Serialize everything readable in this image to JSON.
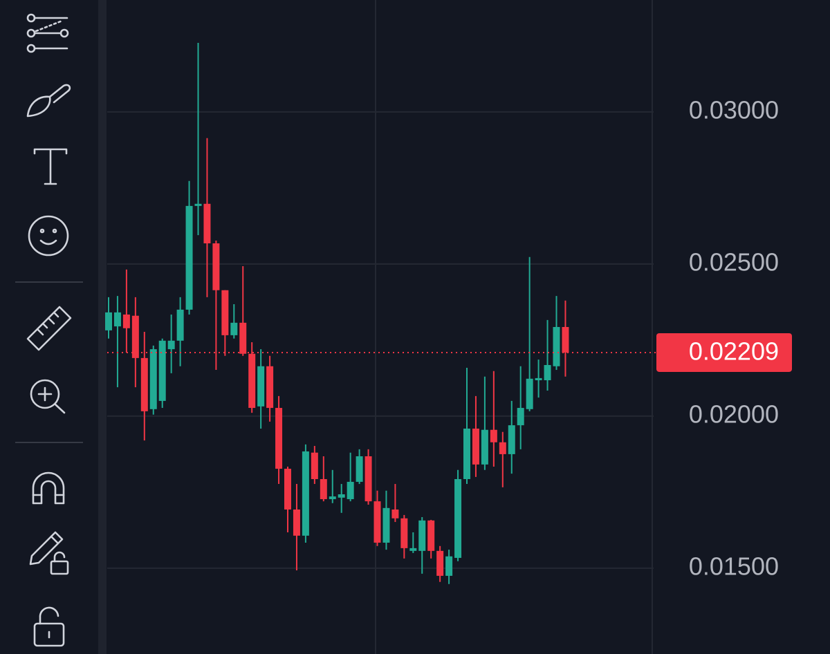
{
  "chart_data": {
    "type": "candlestick",
    "open": [
      0.02282,
      0.02295,
      0.02334,
      0.0233,
      0.02191,
      0.02023,
      0.0205,
      0.0222,
      0.02248,
      0.0235,
      0.02691,
      0.02698,
      0.02568,
      0.02414,
      0.02266,
      0.02307,
      0.02205,
      0.02032,
      0.02164,
      0.02027,
      0.01827,
      0.01693,
      0.01607,
      0.0188,
      0.01793,
      0.01727,
      0.01732,
      0.01727,
      0.01784,
      0.01868,
      0.0172,
      0.01584,
      0.01693,
      0.01664,
      0.01557,
      0.01557,
      0.01657,
      0.01557,
      0.01475,
      0.01534,
      0.01793,
      0.01959,
      0.01841,
      0.01955,
      0.01914,
      0.01875,
      0.0197,
      0.02023,
      0.02118,
      0.02118,
      0.02164,
      0.02293
    ],
    "high": [
      0.02391,
      0.02395,
      0.02482,
      0.02391,
      0.02277,
      0.02232,
      0.02255,
      0.02334,
      0.02391,
      0.02773,
      0.03227,
      0.02914,
      0.02577,
      0.02414,
      0.02368,
      0.02493,
      0.02243,
      0.0222,
      0.02198,
      0.02066,
      0.01834,
      0.01777,
      0.01907,
      0.01902,
      0.01868,
      0.01823,
      0.01777,
      0.0188,
      0.01891,
      0.01891,
      0.01755,
      0.01755,
      0.01777,
      0.01675,
      0.01618,
      0.01668,
      0.01659,
      0.01573,
      0.01561,
      0.01823,
      0.02159,
      0.02066,
      0.0213,
      0.02148,
      0.01948,
      0.0205,
      0.02164,
      0.02523,
      0.02186,
      0.02316,
      0.02395,
      0.0238
    ],
    "low": [
      0.02255,
      0.02095,
      0.02209,
      0.02095,
      0.0192,
      0.02005,
      0.02027,
      0.02141,
      0.02164,
      0.02334,
      0.02595,
      0.02391,
      0.02152,
      0.02198,
      0.02255,
      0.02198,
      0.02011,
      0.01959,
      0.01982,
      0.01777,
      0.01618,
      0.01493,
      0.01584,
      0.01777,
      0.0172,
      0.01714,
      0.01682,
      0.0172,
      0.01777,
      0.01709,
      0.01573,
      0.01561,
      0.01652,
      0.01532,
      0.0155,
      0.01482,
      0.01532,
      0.01455,
      0.01448,
      0.01523,
      0.01777,
      0.018,
      0.01823,
      0.01834,
      0.01766,
      0.01811,
      0.01891,
      0.02016,
      0.02061,
      0.02084,
      0.02152,
      0.0213
    ],
    "close": [
      0.02341,
      0.02341,
      0.02289,
      0.02191,
      0.02016,
      0.0222,
      0.02248,
      0.02248,
      0.0235,
      0.02691,
      0.02698,
      0.02568,
      0.02414,
      0.02266,
      0.02307,
      0.02205,
      0.02027,
      0.02164,
      0.02027,
      0.01827,
      0.01693,
      0.01607,
      0.01884,
      0.01793,
      0.01727,
      0.01736,
      0.01743,
      0.01784,
      0.01868,
      0.0172,
      0.01584,
      0.01698,
      0.01664,
      0.01566,
      0.01566,
      0.01657,
      0.01557,
      0.01475,
      0.01539,
      0.01793,
      0.01959,
      0.01841,
      0.01955,
      0.01914,
      0.01875,
      0.0197,
      0.02027,
      0.02123,
      0.02125,
      0.02168,
      0.02293,
      0.02209
    ],
    "up_color": "#22ab94",
    "down_color": "#f23645",
    "ylim": [
      0.01218,
      0.03368
    ],
    "yticks": [
      {
        "value": 0.03,
        "label": "0.03000"
      },
      {
        "value": 0.025,
        "label": "0.02500"
      },
      {
        "value": 0.02,
        "label": "0.02000"
      },
      {
        "value": 0.015,
        "label": "0.01500"
      }
    ],
    "last_price": 0.02209,
    "grid": true
  }
}
